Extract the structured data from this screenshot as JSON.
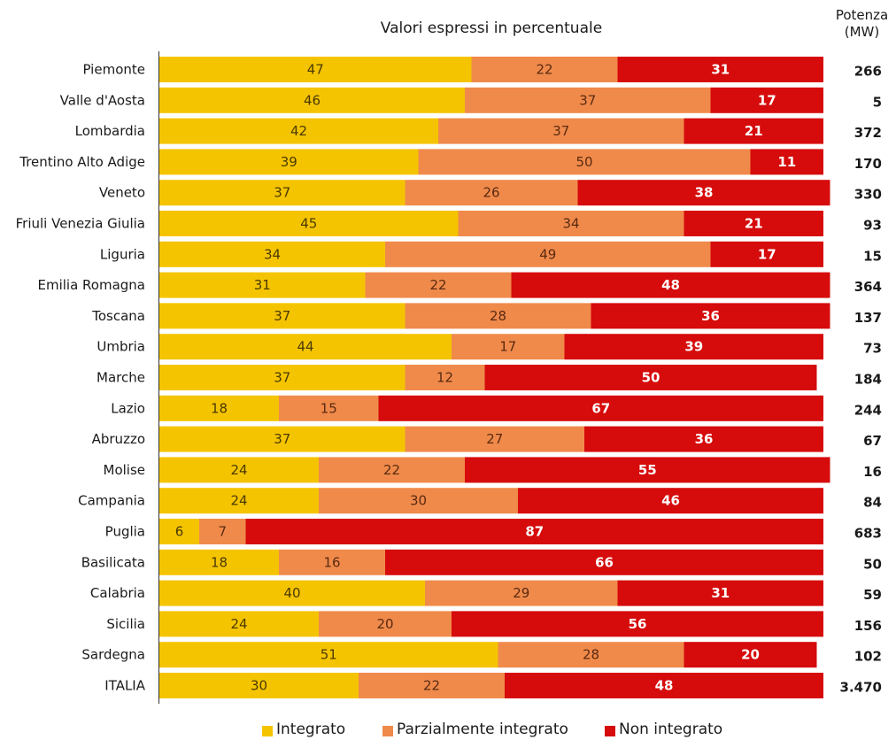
{
  "chart_data": {
    "type": "bar",
    "orientation": "horizontal",
    "stacked": true,
    "title": "Valori espressi in percentuale",
    "side_column_header": [
      "Potenza",
      "(MW)"
    ],
    "categories": [
      "Piemonte",
      "Valle d'Aosta",
      "Lombardia",
      "Trentino Alto Adige",
      "Veneto",
      "Friuli Venezia Giulia",
      "Liguria",
      "Emilia Romagna",
      "Toscana",
      "Umbria",
      "Marche",
      "Lazio",
      "Abruzzo",
      "Molise",
      "Campania",
      "Puglia",
      "Basilicata",
      "Calabria",
      "Sicilia",
      "Sardegna",
      "ITALIA"
    ],
    "series": [
      {
        "name": "Integrato",
        "color": "#f5c400",
        "label_color": "#4a3a00",
        "values": [
          47,
          46,
          42,
          39,
          37,
          45,
          34,
          31,
          37,
          44,
          37,
          18,
          37,
          24,
          24,
          6,
          18,
          40,
          24,
          51,
          30
        ]
      },
      {
        "name": "Parzialmente integrato",
        "color": "#f08a4b",
        "label_color": "#5a2a10",
        "values": [
          22,
          37,
          37,
          50,
          26,
          34,
          49,
          22,
          28,
          17,
          12,
          15,
          27,
          22,
          30,
          7,
          16,
          29,
          20,
          28,
          22
        ]
      },
      {
        "name": "Non integrato",
        "color": "#d60b0b",
        "label_color": "#ffffff",
        "values": [
          31,
          17,
          21,
          11,
          38,
          21,
          17,
          48,
          36,
          39,
          50,
          67,
          36,
          55,
          46,
          87,
          66,
          31,
          56,
          20,
          48
        ]
      }
    ],
    "potenza_mw": [
      "266",
      "5",
      "372",
      "170",
      "330",
      "93",
      "15",
      "364",
      "137",
      "73",
      "184",
      "244",
      "67",
      "16",
      "84",
      "683",
      "50",
      "59",
      "156",
      "102",
      "3.470"
    ],
    "xlim": [
      0,
      100
    ],
    "grid": false,
    "legend_position": "bottom"
  }
}
